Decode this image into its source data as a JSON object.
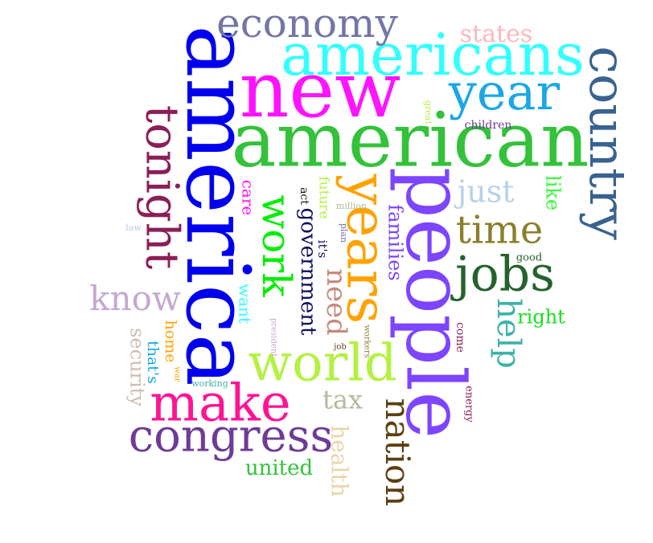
{
  "words": [
    {
      "text": "america",
      "color": "#0000ee"
    },
    {
      "text": "american",
      "color": "#33c23a"
    },
    {
      "text": "people",
      "color": "#7d45ff"
    },
    {
      "text": "new",
      "color": "#ff14ff"
    },
    {
      "text": "americans",
      "color": "#33ffff"
    },
    {
      "text": "country",
      "color": "#39628f"
    },
    {
      "text": "years",
      "color": "#ffa200"
    },
    {
      "text": "year",
      "color": "#1aa7e8"
    },
    {
      "text": "economy",
      "color": "#7575a6"
    },
    {
      "text": "tonight",
      "color": "#8b1e57"
    },
    {
      "text": "world",
      "color": "#b4f142"
    },
    {
      "text": "make",
      "color": "#ff1493"
    },
    {
      "text": "congress",
      "color": "#6e3b96"
    },
    {
      "text": "jobs",
      "color": "#26622d"
    },
    {
      "text": "work",
      "color": "#00ee00"
    },
    {
      "text": "time",
      "color": "#8a7f2c"
    },
    {
      "text": "nation",
      "color": "#5c3f10"
    },
    {
      "text": "know",
      "color": "#c4a8d1"
    },
    {
      "text": "help",
      "color": "#3cb3a7"
    },
    {
      "text": "government",
      "color": "#10105c"
    },
    {
      "text": "need",
      "color": "#c48a7c"
    },
    {
      "text": "just",
      "color": "#b9d1e6"
    },
    {
      "text": "states",
      "color": "#ffb7bb"
    },
    {
      "text": "tax",
      "color": "#b6b89e"
    },
    {
      "text": "health",
      "color": "#ead4a8"
    },
    {
      "text": "united",
      "color": "#33c23a"
    },
    {
      "text": "families",
      "color": "#7d45ff"
    },
    {
      "text": "security",
      "color": "#ccbcaf"
    },
    {
      "text": "like",
      "color": "#33ff33"
    },
    {
      "text": "right",
      "color": "#18e01f"
    },
    {
      "text": "want",
      "color": "#33ffff"
    },
    {
      "text": "care",
      "color": "#ff14ff"
    },
    {
      "text": "home",
      "color": "#ffa200"
    },
    {
      "text": "that's",
      "color": "#1aa7e8"
    },
    {
      "text": "future",
      "color": "#b4f142"
    },
    {
      "text": "it's",
      "color": "#10105c"
    },
    {
      "text": "act",
      "color": "#0f1f0f"
    },
    {
      "text": "children",
      "color": "#6e3b96"
    },
    {
      "text": "come",
      "color": "#8b1e57"
    },
    {
      "text": "energy",
      "color": "#8b1e57"
    },
    {
      "text": "good",
      "color": "#26622d"
    },
    {
      "text": "great",
      "color": "#b4f142"
    },
    {
      "text": "million",
      "color": "#b6b89e"
    },
    {
      "text": "plan",
      "color": "#7575a6"
    },
    {
      "text": "law",
      "color": "#b9d1e6"
    },
    {
      "text": "president",
      "color": "#c4a8d1"
    },
    {
      "text": "working",
      "color": "#3cb3a7"
    },
    {
      "text": "war",
      "color": "#ffa200"
    },
    {
      "text": "job",
      "color": "#5c3f10"
    },
    {
      "text": "workers",
      "color": "#8a7f2c"
    }
  ]
}
